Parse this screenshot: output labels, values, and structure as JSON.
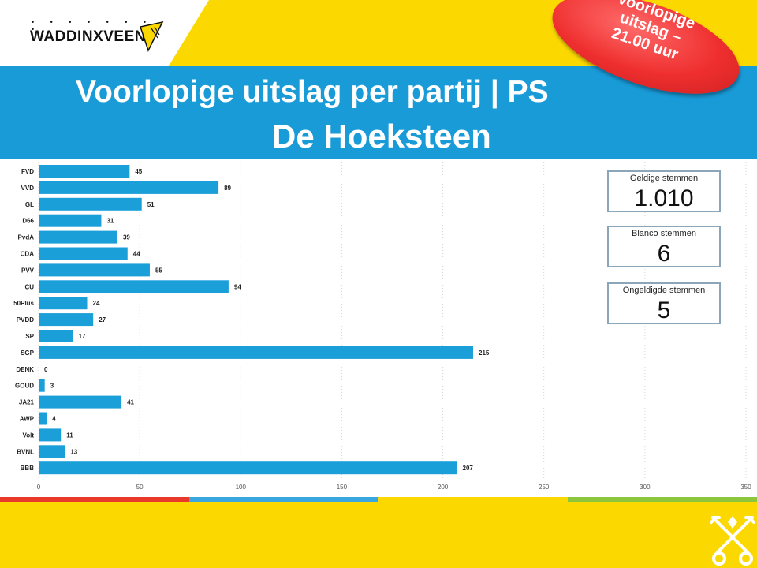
{
  "logo": {
    "name": "WADDINXVEEN",
    "dots": "• • • • • • • •"
  },
  "header": {
    "title_line1": "Voorlopige uitslag per partij | PS",
    "title_line2": "De Hoeksteen"
  },
  "stamp": {
    "line1": "Voorlopige",
    "line2": "uitslag –",
    "line3": "21.00 uur"
  },
  "stats": [
    {
      "label": "Geldige stemmen",
      "value": "1.010"
    },
    {
      "label": "Blanco stemmen",
      "value": "6"
    },
    {
      "label": "Ongeldigde stemmen",
      "value": "5"
    }
  ],
  "colors": {
    "bar": "#1b9fd9",
    "band": "#199bd8",
    "yellow": "#fbd800",
    "stripe_red": "#e8392b",
    "stripe_blue": "#3aa6e0",
    "stripe_yellow": "#fbd800",
    "stripe_green": "#8cc63f"
  },
  "chart_data": {
    "type": "bar",
    "orientation": "horizontal",
    "categories": [
      "FVD",
      "VVD",
      "GL",
      "D66",
      "PvdA",
      "CDA",
      "PVV",
      "CU",
      "50Plus",
      "PVDD",
      "SP",
      "SGP",
      "DENK",
      "GOUD",
      "JA21",
      "AWP",
      "Volt",
      "BVNL",
      "BBB"
    ],
    "values": [
      45,
      89,
      51,
      31,
      39,
      44,
      55,
      94,
      24,
      27,
      17,
      215,
      0,
      3,
      41,
      4,
      11,
      13,
      207
    ],
    "data_labels": [
      "45",
      "89",
      "51",
      "31",
      "39",
      "44",
      "55",
      "94",
      "24",
      "27",
      "17",
      "215",
      "0",
      "3",
      "41",
      "4",
      "11",
      "13",
      "207"
    ],
    "xlim": [
      0,
      350
    ],
    "xticks": [
      0,
      50,
      100,
      150,
      200,
      250,
      300,
      350
    ],
    "xtick_labels": [
      "0",
      "50",
      "100",
      "150",
      "200",
      "250",
      "300",
      "350"
    ],
    "grid": "vertical dotted",
    "legend": "none"
  }
}
